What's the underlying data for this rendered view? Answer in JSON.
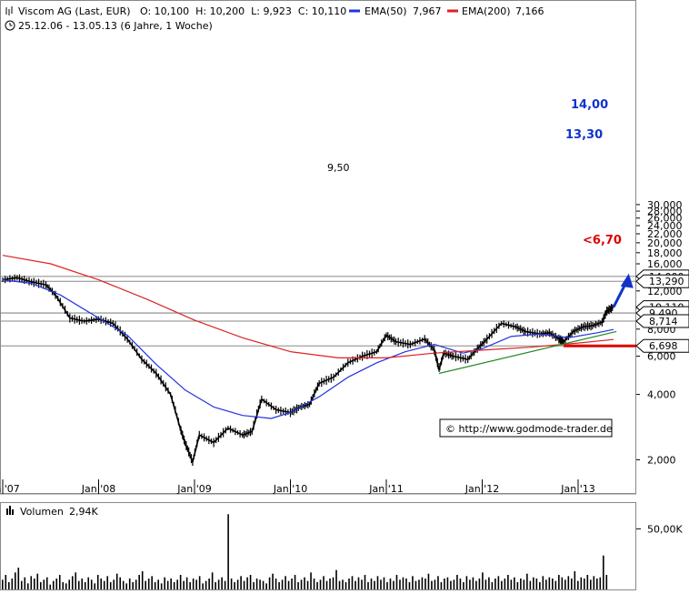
{
  "header": {
    "title": "Viscom AG (Last, EUR)",
    "ohlc": "O: 10,100  H: 10,200  L: 9,923  C: 10,110",
    "period": "25.12.06 - 13.05.13 (6 Jahre, 1 Woche)",
    "ema50_label": "EMA(50)",
    "ema50_value": "7,967",
    "ema200_label": "EMA(200)",
    "ema200_value": "7,166"
  },
  "colors": {
    "price": "#000000",
    "ema50": "#2233dd",
    "ema200": "#dd2222",
    "trendline": "#228822",
    "target": "#1133cc",
    "support": "#dd0000",
    "level_line": "#888888"
  },
  "copyright": "© http://www.godmode-trader.de",
  "volume": {
    "label": "Volumen",
    "value": "2,94K",
    "axis_label": "50,00K"
  },
  "annotations": {
    "target1": "14,00",
    "target2": "13,30",
    "support": "<6,70",
    "resistance": "9,50"
  },
  "right_labels": [
    "14,000",
    "13,290",
    "10,110",
    "9,490",
    "8,714",
    "6,698"
  ],
  "chart_data": {
    "type": "line",
    "title": "Viscom AG (Last, EUR)",
    "y_scale": "log",
    "ylim": [
      1.7,
      30
    ],
    "y_ticks": [
      30,
      28,
      26,
      24,
      22,
      20,
      18,
      16,
      14,
      12,
      10,
      8,
      6,
      4,
      2
    ],
    "y_tick_labels": [
      "30,000",
      "28,000",
      "26,000",
      "24,000",
      "22,000",
      "20,000",
      "18,000",
      "16,000",
      "14,000",
      "12,000",
      "10,000",
      "8,000",
      "6,000",
      "4,000",
      "2,000"
    ],
    "x_ticks": [
      "Jan '07",
      "Jan '08",
      "Jan '09",
      "Jan '10",
      "Jan '11",
      "Jan '12",
      "Jan '13"
    ],
    "series": [
      {
        "name": "Viscom AG (Last, EUR)",
        "x": [
          2007.0,
          2007.15,
          2007.3,
          2007.45,
          2007.55,
          2007.7,
          2007.85,
          2008.0,
          2008.15,
          2008.3,
          2008.45,
          2008.6,
          2008.75,
          2008.85,
          2008.9,
          2008.98,
          2009.05,
          2009.2,
          2009.35,
          2009.5,
          2009.6,
          2009.7,
          2009.85,
          2010.0,
          2010.1,
          2010.2,
          2010.3,
          2010.45,
          2010.6,
          2010.75,
          2010.9,
          2011.0,
          2011.1,
          2011.25,
          2011.4,
          2011.5,
          2011.55,
          2011.6,
          2011.7,
          2011.85,
          2011.95,
          2012.05,
          2012.2,
          2012.35,
          2012.45,
          2012.6,
          2012.7,
          2012.8,
          2012.85,
          2012.95,
          2013.05,
          2013.15,
          2013.25,
          2013.3,
          2013.37
        ],
        "y": [
          13.5,
          13.8,
          13.2,
          12.8,
          11.5,
          9.0,
          8.7,
          8.9,
          8.5,
          7.2,
          5.8,
          5.0,
          4.0,
          2.8,
          2.4,
          1.95,
          2.6,
          2.4,
          2.8,
          2.6,
          2.7,
          3.8,
          3.4,
          3.3,
          3.5,
          3.6,
          4.5,
          4.8,
          5.6,
          6.0,
          6.3,
          7.5,
          7.0,
          6.8,
          7.2,
          6.4,
          5.2,
          6.2,
          6.0,
          5.8,
          6.5,
          7.2,
          8.5,
          8.2,
          7.8,
          7.6,
          7.7,
          7.2,
          7.0,
          7.8,
          8.2,
          8.3,
          8.6,
          9.7,
          10.11
        ]
      },
      {
        "name": "EMA(50)",
        "x": [
          2007.0,
          2007.3,
          2007.6,
          2008.0,
          2008.3,
          2008.6,
          2008.9,
          2009.2,
          2009.5,
          2009.8,
          2010.0,
          2010.3,
          2010.6,
          2010.9,
          2011.2,
          2011.5,
          2011.8,
          2012.0,
          2012.3,
          2012.6,
          2012.9,
          2013.2,
          2013.37
        ],
        "y": [
          13.5,
          13.0,
          11.5,
          9.0,
          7.5,
          5.5,
          4.2,
          3.5,
          3.2,
          3.1,
          3.3,
          3.9,
          4.8,
          5.6,
          6.3,
          6.8,
          6.2,
          6.5,
          7.4,
          7.6,
          7.3,
          7.7,
          7.967
        ]
      },
      {
        "name": "EMA(200)",
        "x": [
          2007.0,
          2007.5,
          2008.0,
          2008.5,
          2009.0,
          2009.5,
          2010.0,
          2010.5,
          2011.0,
          2011.5,
          2012.0,
          2012.5,
          2013.0,
          2013.37
        ],
        "y": [
          17.5,
          16.0,
          13.5,
          11.0,
          8.8,
          7.3,
          6.3,
          5.9,
          5.9,
          6.2,
          6.4,
          6.6,
          6.9,
          7.166
        ]
      },
      {
        "name": "Trendlinie",
        "x": [
          2011.55,
          2013.4
        ],
        "y": [
          5.0,
          7.8
        ]
      }
    ],
    "levels": [
      14.0,
      13.29,
      10.11,
      9.5,
      9.49,
      8.714,
      6.698
    ],
    "volume_ylim": [
      0,
      60
    ],
    "volume_ticks": [
      50
    ],
    "volume_values": [
      8,
      12,
      6,
      9,
      14,
      18,
      7,
      10,
      5,
      11,
      9,
      13,
      6,
      8,
      10,
      4,
      7,
      9,
      12,
      6,
      5,
      8,
      11,
      14,
      7,
      9,
      6,
      10,
      8,
      5,
      12,
      9,
      7,
      11,
      6,
      8,
      13,
      10,
      7,
      5,
      9,
      6,
      8,
      12,
      15,
      7,
      9,
      11,
      6,
      8,
      5,
      10,
      7,
      9,
      6,
      8,
      12,
      7,
      10,
      6,
      9,
      8,
      11,
      5,
      7,
      9,
      14,
      6,
      8,
      10,
      7,
      62,
      9,
      6,
      8,
      11,
      7,
      10,
      12,
      6,
      9,
      8,
      7,
      5,
      10,
      13,
      9,
      6,
      8,
      11,
      7,
      9,
      12,
      6,
      8,
      10,
      7,
      14,
      9,
      6,
      8,
      11,
      7,
      9,
      10,
      16,
      7,
      8,
      6,
      9,
      11,
      7,
      10,
      8,
      12,
      6,
      9,
      7,
      11,
      8,
      10,
      6,
      9,
      7,
      12,
      8,
      10,
      9,
      6,
      11,
      7,
      8,
      10,
      9,
      13,
      7,
      8,
      11,
      6,
      9,
      10,
      7,
      8,
      12,
      9,
      6,
      11,
      8,
      10,
      7,
      9,
      14,
      8,
      10,
      6,
      9,
      11,
      7,
      9,
      12,
      8,
      10,
      6,
      9,
      8,
      13,
      7,
      10,
      9,
      6,
      11,
      8,
      10,
      9,
      7,
      12,
      10,
      8,
      11,
      9,
      15,
      7,
      10,
      9,
      12,
      8,
      11,
      9,
      10,
      28,
      12
    ]
  }
}
